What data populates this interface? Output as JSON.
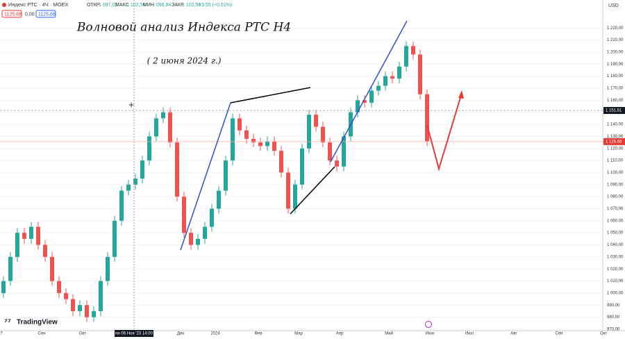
{
  "header": {
    "symbol": "Индекс РТС · 4Ч · MOEX",
    "open_label": "ОТКР",
    "open": "1 097,02",
    "high_label": "МАКС",
    "high": "1 102,56",
    "low_label": "МИН",
    "low": "1 096,84",
    "close_label": "ЗАКР",
    "close": "1 102,56",
    "change": "+5,55 (+0,51%)",
    "box1": "1125,68",
    "box2": "0,00",
    "box3": "1125,68",
    "currency": "USD",
    "logo": "TradingView"
  },
  "chart_data": {
    "type": "candlestick",
    "title": "Волновой анализ Индекса РТС Н4",
    "subtitle": "( 2 июня 2024 г.)",
    "up_color": "#26a69a",
    "down_color": "#ef5350",
    "open": [
      1000,
      1010,
      1030,
      1050,
      1045,
      1055,
      1040,
      1030,
      1010,
      1000,
      995,
      985,
      990,
      980,
      985,
      1010,
      1030,
      1060,
      1085,
      1090,
      1095,
      1110,
      1130,
      1145,
      1150,
      1125,
      1080,
      1050,
      1040,
      1045,
      1055,
      1070,
      1085,
      1110,
      1145,
      1135,
      1128,
      1125,
      1122,
      1126,
      1118,
      1100,
      1070,
      1090,
      1120,
      1148,
      1138,
      1125,
      1110,
      1105,
      1130,
      1150,
      1160,
      1158,
      1168,
      1172,
      1180,
      1178,
      1188,
      1205,
      1198,
      1165
    ],
    "high": [
      1014,
      1034,
      1054,
      1054,
      1059,
      1059,
      1044,
      1034,
      1014,
      1004,
      999,
      994,
      994,
      989,
      1014,
      1034,
      1064,
      1089,
      1094,
      1099,
      1114,
      1134,
      1149,
      1154,
      1154,
      1129,
      1084,
      1054,
      1049,
      1059,
      1074,
      1089,
      1114,
      1149,
      1149,
      1139,
      1132,
      1129,
      1130,
      1130,
      1122,
      1104,
      1094,
      1124,
      1152,
      1152,
      1142,
      1129,
      1114,
      1134,
      1154,
      1164,
      1164,
      1172,
      1176,
      1184,
      1184,
      1192,
      1209,
      1209,
      1202,
      1169
    ],
    "low": [
      996,
      1006,
      1026,
      1041,
      1041,
      1036,
      1026,
      1006,
      996,
      991,
      981,
      981,
      976,
      976,
      981,
      1006,
      1026,
      1056,
      1081,
      1086,
      1091,
      1106,
      1126,
      1141,
      1121,
      1076,
      1046,
      1036,
      1036,
      1041,
      1051,
      1066,
      1081,
      1106,
      1131,
      1124,
      1121,
      1118,
      1118,
      1114,
      1096,
      1066,
      1066,
      1086,
      1116,
      1134,
      1121,
      1106,
      1101,
      1101,
      1126,
      1146,
      1154,
      1154,
      1164,
      1168,
      1174,
      1174,
      1184,
      1194,
      1161,
      1122
    ],
    "close": [
      1010,
      1030,
      1050,
      1045,
      1055,
      1040,
      1030,
      1010,
      1000,
      995,
      985,
      990,
      980,
      985,
      1010,
      1030,
      1060,
      1085,
      1090,
      1095,
      1110,
      1130,
      1145,
      1150,
      1125,
      1080,
      1050,
      1040,
      1045,
      1055,
      1070,
      1085,
      1110,
      1145,
      1135,
      1128,
      1125,
      1122,
      1126,
      1118,
      1100,
      1070,
      1090,
      1120,
      1148,
      1138,
      1125,
      1110,
      1105,
      1130,
      1150,
      1160,
      1158,
      1168,
      1172,
      1180,
      1178,
      1188,
      1205,
      1198,
      1165,
      1126
    ],
    "ylim": [
      968.8,
      1243.2
    ],
    "yticks": [
      {
        "value": 970,
        "label": "970,00"
      },
      {
        "value": 980,
        "label": "980,00"
      },
      {
        "value": 990,
        "label": "990,00"
      },
      {
        "value": 1000,
        "label": "1 000,00"
      },
      {
        "value": 1010,
        "label": "1 010,00"
      },
      {
        "value": 1020,
        "label": "1 020,00"
      },
      {
        "value": 1030,
        "label": "1 030,00"
      },
      {
        "value": 1040,
        "label": "1 040,00"
      },
      {
        "value": 1050,
        "label": "1 050,00"
      },
      {
        "value": 1060,
        "label": "1 060,00"
      },
      {
        "value": 1070,
        "label": "1 070,00"
      },
      {
        "value": 1080,
        "label": "1 080,00"
      },
      {
        "value": 1090,
        "label": "1 090,00"
      },
      {
        "value": 1100,
        "label": "1 100,00"
      },
      {
        "value": 1110,
        "label": "1 110,00"
      },
      {
        "value": 1120,
        "label": "1 120,00"
      },
      {
        "value": 1130,
        "label": "1 130,00"
      },
      {
        "value": 1140,
        "label": "1 140,00"
      },
      {
        "value": 1150,
        "label": "1 150,00"
      },
      {
        "value": 1160,
        "label": "1 160,00"
      },
      {
        "value": 1170,
        "label": "1 170,00"
      },
      {
        "value": 1180,
        "label": "1 180,00"
      },
      {
        "value": 1190,
        "label": "1 190,00"
      },
      {
        "value": 1200,
        "label": "1 200,00"
      },
      {
        "value": 1210,
        "label": "1 210,00"
      },
      {
        "value": 1220,
        "label": "1 220,00"
      }
    ],
    "price_labels": [
      {
        "value": 1151.51,
        "label": "1 151,51"
      },
      {
        "value": 1125.68,
        "label": "1 125,68"
      }
    ],
    "x_labels": [
      "7",
      "Сен",
      "Окт",
      "пн 06 Ноя '23   14:00",
      "Дек",
      "2024",
      "Фев",
      "Мар",
      "Апр",
      "Май",
      "Июн",
      "Июл",
      "Авг",
      "Сен",
      "Окт"
    ]
  }
}
